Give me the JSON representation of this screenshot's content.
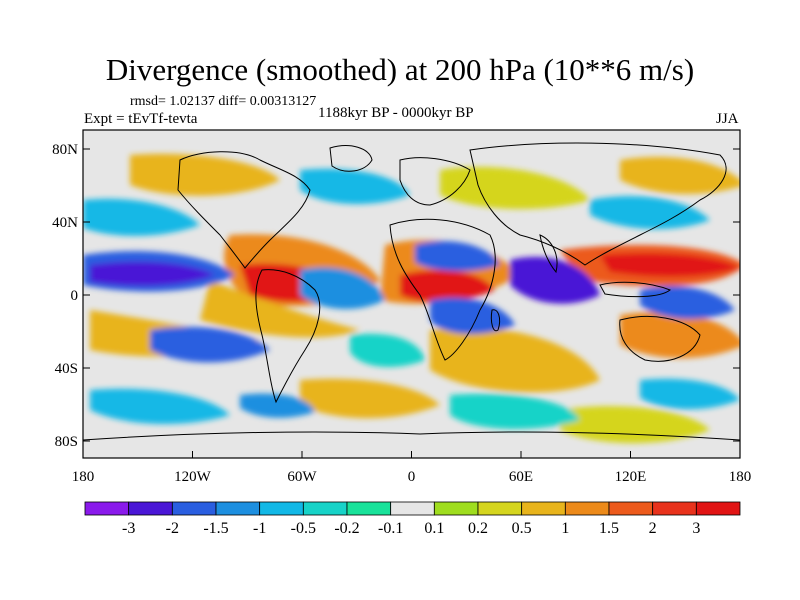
{
  "title": "Divergence (smoothed) at 200 hPa (10**6 m/s)",
  "stats": "rmsd= 1.02137 diff= 0.00313127",
  "experiment": "Expt = tEvTf-tevta",
  "period": "1188kyr BP - 0000kyr BP",
  "season": "JJA",
  "lat_ticks": [
    "80N",
    "40N",
    "0",
    "40S",
    "80S"
  ],
  "lon_ticks": [
    "180",
    "120W",
    "60W",
    "0",
    "60E",
    "120E",
    "180"
  ],
  "colorbar": {
    "labels": [
      "-3",
      "-2",
      "-1.5",
      "-1",
      "-0.5",
      "-0.2",
      "-0.1",
      "0.1",
      "0.2",
      "0.5",
      "1",
      "1.5",
      "2",
      "3"
    ],
    "colors": [
      "#8a1aeb",
      "#4a16d6",
      "#2a5ee0",
      "#1d8fe0",
      "#12b8e6",
      "#17d3c8",
      "#19e29a",
      "#e6e6e6",
      "#9fdd1e",
      "#d5d51e",
      "#e8b41c",
      "#ec8a1a",
      "#ec5a1c",
      "#e8321c",
      "#e11414"
    ]
  },
  "colors": {
    "ocean_white": "#e6e6e6",
    "coast": "#000000"
  }
}
